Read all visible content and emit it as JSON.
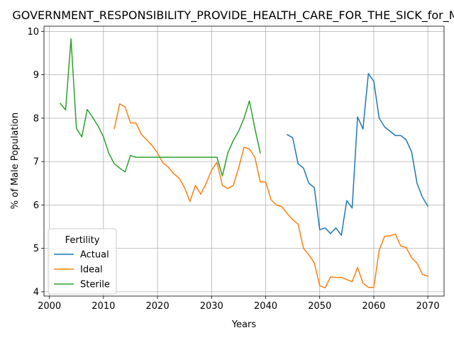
{
  "chart_data": {
    "type": "line",
    "title": "GOVERNMENT_RESPONSIBILITY_PROVIDE_HEALTH_CARE_FOR_THE_SICK_for_Male",
    "xlabel": "Years",
    "ylabel": "% of Male Population",
    "xlim": [
      1999,
      2073
    ],
    "ylim": [
      3.9,
      10.12
    ],
    "x_ticks": [
      2000,
      2010,
      2020,
      2030,
      2040,
      2050,
      2060,
      2070
    ],
    "y_ticks": [
      4,
      5,
      6,
      7,
      8,
      9,
      10
    ],
    "grid": true,
    "legend": {
      "title": "Fertility",
      "placement": "lower-left"
    },
    "series": [
      {
        "name": "Actual",
        "color": "#1f77b4",
        "points": [
          [
            2044,
            7.62
          ],
          [
            2045,
            7.55
          ],
          [
            2046,
            6.95
          ],
          [
            2047,
            6.85
          ],
          [
            2048,
            6.5
          ],
          [
            2049,
            6.4
          ],
          [
            2050,
            5.43
          ],
          [
            2051,
            5.47
          ],
          [
            2052,
            5.34
          ],
          [
            2053,
            5.47
          ],
          [
            2054,
            5.3
          ],
          [
            2055,
            6.1
          ],
          [
            2056,
            5.93
          ],
          [
            2057,
            8.03
          ],
          [
            2058,
            7.75
          ],
          [
            2059,
            9.03
          ],
          [
            2060,
            8.85
          ],
          [
            2061,
            8.0
          ],
          [
            2062,
            7.8
          ],
          [
            2063,
            7.7
          ],
          [
            2064,
            7.6
          ],
          [
            2065,
            7.6
          ],
          [
            2066,
            7.5
          ],
          [
            2067,
            7.22
          ],
          [
            2068,
            6.5
          ],
          [
            2069,
            6.18
          ],
          [
            2070,
            5.97
          ]
        ]
      },
      {
        "name": "Ideal",
        "color": "#ff7f0e",
        "points": [
          [
            2012,
            7.76
          ],
          [
            2013,
            8.33
          ],
          [
            2014,
            8.26
          ],
          [
            2015,
            7.89
          ],
          [
            2016,
            7.89
          ],
          [
            2017,
            7.63
          ],
          [
            2018,
            7.5
          ],
          [
            2019,
            7.37
          ],
          [
            2020,
            7.2
          ],
          [
            2021,
            6.97
          ],
          [
            2022,
            6.87
          ],
          [
            2023,
            6.72
          ],
          [
            2024,
            6.62
          ],
          [
            2025,
            6.4
          ],
          [
            2026,
            6.08
          ],
          [
            2027,
            6.45
          ],
          [
            2028,
            6.25
          ],
          [
            2029,
            6.5
          ],
          [
            2030,
            6.8
          ],
          [
            2031,
            6.98
          ],
          [
            2032,
            6.45
          ],
          [
            2033,
            6.38
          ],
          [
            2034,
            6.45
          ],
          [
            2035,
            6.85
          ],
          [
            2036,
            7.33
          ],
          [
            2037,
            7.29
          ],
          [
            2038,
            7.1
          ],
          [
            2039,
            6.53
          ],
          [
            2040,
            6.53
          ],
          [
            2041,
            6.12
          ],
          [
            2042,
            6.0
          ],
          [
            2043,
            5.96
          ],
          [
            2044,
            5.8
          ],
          [
            2045,
            5.66
          ],
          [
            2046,
            5.56
          ],
          [
            2047,
            5.0
          ],
          [
            2048,
            4.85
          ],
          [
            2049,
            4.66
          ],
          [
            2050,
            4.14
          ],
          [
            2051,
            4.09
          ],
          [
            2052,
            4.34
          ],
          [
            2053,
            4.33
          ],
          [
            2054,
            4.33
          ],
          [
            2055,
            4.28
          ],
          [
            2056,
            4.23
          ],
          [
            2057,
            4.56
          ],
          [
            2058,
            4.2
          ],
          [
            2059,
            4.1
          ],
          [
            2060,
            4.1
          ],
          [
            2061,
            4.96
          ],
          [
            2062,
            5.28
          ],
          [
            2063,
            5.29
          ],
          [
            2064,
            5.33
          ],
          [
            2065,
            5.05
          ],
          [
            2066,
            5.02
          ],
          [
            2067,
            4.78
          ],
          [
            2068,
            4.66
          ],
          [
            2069,
            4.4
          ],
          [
            2070,
            4.36
          ]
        ]
      },
      {
        "name": "Sterile",
        "color": "#2ca02c",
        "points": [
          [
            2002,
            8.34
          ],
          [
            2003,
            8.19
          ],
          [
            2004,
            9.83
          ],
          [
            2005,
            7.76
          ],
          [
            2006,
            7.57
          ],
          [
            2007,
            8.2
          ],
          [
            2008,
            8.02
          ],
          [
            2009,
            7.82
          ],
          [
            2010,
            7.57
          ],
          [
            2011,
            7.19
          ],
          [
            2012,
            6.95
          ],
          [
            2013,
            6.85
          ],
          [
            2014,
            6.76
          ],
          [
            2015,
            7.14
          ],
          [
            2016,
            7.1
          ],
          [
            2017,
            7.1
          ],
          [
            2018,
            7.1
          ],
          [
            2019,
            7.1
          ],
          [
            2020,
            7.1
          ],
          [
            2021,
            7.1
          ],
          [
            2022,
            7.1
          ],
          [
            2023,
            7.1
          ],
          [
            2024,
            7.1
          ],
          [
            2025,
            7.1
          ],
          [
            2026,
            7.1
          ],
          [
            2027,
            7.1
          ],
          [
            2028,
            7.1
          ],
          [
            2029,
            7.1
          ],
          [
            2030,
            7.1
          ],
          [
            2031,
            7.1
          ],
          [
            2032,
            6.67
          ],
          [
            2033,
            7.2
          ],
          [
            2034,
            7.48
          ],
          [
            2035,
            7.7
          ],
          [
            2036,
            8.0
          ],
          [
            2037,
            8.4
          ],
          [
            2038,
            7.77
          ],
          [
            2039,
            7.2
          ]
        ]
      }
    ]
  }
}
